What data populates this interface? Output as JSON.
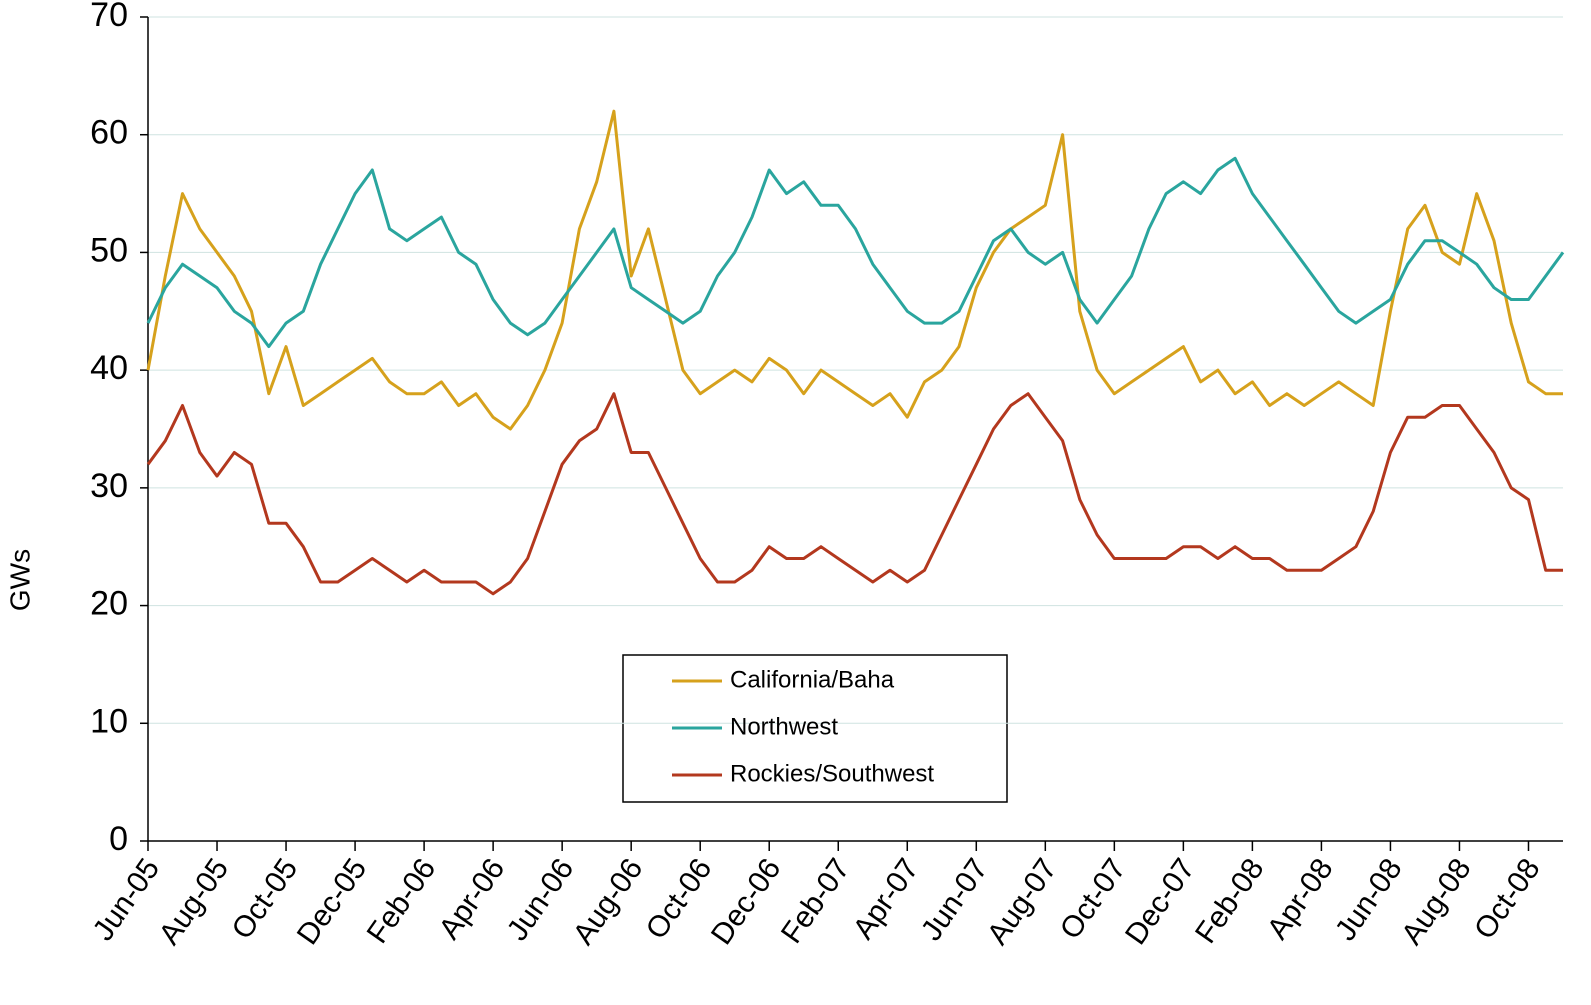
{
  "chart_data": {
    "type": "line",
    "y_label": "GWs",
    "categories": [
      "Jun-05",
      null,
      null,
      null,
      "Aug-05",
      null,
      null,
      null,
      "Oct-05",
      null,
      null,
      null,
      "Dec-05",
      null,
      null,
      null,
      "Feb-06",
      null,
      null,
      null,
      "Apr-06",
      null,
      null,
      null,
      "Jun-06",
      null,
      null,
      null,
      "Aug-06",
      null,
      null,
      null,
      "Oct-06",
      null,
      null,
      null,
      "Dec-06",
      null,
      null,
      null,
      "Feb-07",
      null,
      null,
      null,
      "Apr-07",
      null,
      null,
      null,
      "Jun-07",
      null,
      null,
      null,
      "Aug-07",
      null,
      null,
      null,
      "Oct-07",
      null,
      null,
      null,
      "Dec-07",
      null,
      null,
      null,
      "Feb-08",
      null,
      null,
      null,
      "Apr-08",
      null,
      null,
      null,
      "Jun-08",
      null,
      null,
      null,
      "Aug-08",
      null,
      null,
      null,
      "Oct-08",
      null,
      null
    ],
    "series": [
      {
        "name": "California/Baha",
        "color": "#d6a11c",
        "values": [
          40,
          48,
          55,
          52,
          50,
          48,
          45,
          38,
          42,
          37,
          38,
          39,
          40,
          41,
          39,
          38,
          38,
          39,
          37,
          38,
          36,
          35,
          37,
          40,
          44,
          52,
          56,
          62,
          48,
          52,
          46,
          40,
          38,
          39,
          40,
          39,
          41,
          40,
          38,
          40,
          39,
          38,
          37,
          38,
          36,
          39,
          40,
          42,
          47,
          50,
          52,
          53,
          54,
          60,
          45,
          40,
          38,
          39,
          40,
          41,
          42,
          39,
          40,
          38,
          39,
          37,
          38,
          37,
          38,
          39,
          38,
          37,
          45,
          52,
          54,
          50,
          49,
          55,
          51,
          44,
          39,
          38,
          38
        ]
      },
      {
        "name": "Northwest",
        "color": "#2aa59e",
        "values": [
          44,
          47,
          49,
          48,
          47,
          45,
          44,
          42,
          44,
          45,
          49,
          52,
          55,
          57,
          52,
          51,
          52,
          53,
          50,
          49,
          46,
          44,
          43,
          44,
          46,
          48,
          50,
          52,
          47,
          46,
          45,
          44,
          45,
          48,
          50,
          53,
          57,
          55,
          56,
          54,
          54,
          52,
          49,
          47,
          45,
          44,
          44,
          45,
          48,
          51,
          52,
          50,
          49,
          50,
          46,
          44,
          46,
          48,
          52,
          55,
          56,
          55,
          57,
          58,
          55,
          53,
          51,
          49,
          47,
          45,
          44,
          45,
          46,
          49,
          51,
          51,
          50,
          49,
          47,
          46,
          46,
          48,
          50
        ]
      },
      {
        "name": "Rockies/Southwest",
        "color": "#b3381e",
        "values": [
          32,
          34,
          37,
          33,
          31,
          33,
          32,
          27,
          27,
          25,
          22,
          22,
          23,
          24,
          23,
          22,
          23,
          22,
          22,
          22,
          21,
          22,
          24,
          28,
          32,
          34,
          35,
          38,
          33,
          33,
          30,
          27,
          24,
          22,
          22,
          23,
          25,
          24,
          24,
          25,
          24,
          23,
          22,
          23,
          22,
          23,
          26,
          29,
          32,
          35,
          37,
          38,
          36,
          34,
          29,
          26,
          24,
          24,
          24,
          24,
          25,
          25,
          24,
          25,
          24,
          24,
          23,
          23,
          23,
          24,
          25,
          28,
          33,
          36,
          36,
          37,
          37,
          35,
          33,
          30,
          29,
          23,
          23
        ]
      }
    ],
    "ylim": [
      0,
      70
    ],
    "yticks": [
      0,
      10,
      20,
      30,
      40,
      50,
      60,
      70
    ],
    "grid": true
  }
}
